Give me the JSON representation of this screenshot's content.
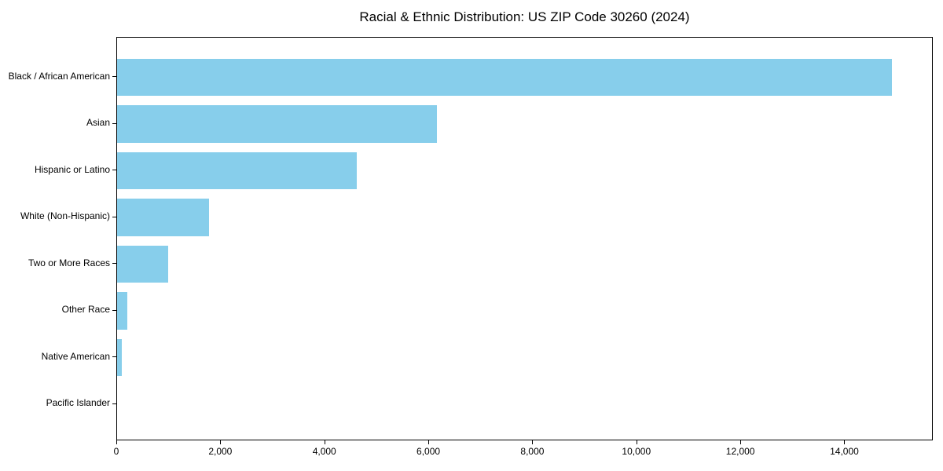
{
  "chart_data": {
    "type": "bar",
    "orientation": "horizontal",
    "title": "Racial & Ethnic Distribution: US ZIP Code 30260 (2024)",
    "categories": [
      "Black / African American",
      "Asian",
      "Hispanic or Latino",
      "White (Non-Hispanic)",
      "Two or More Races",
      "Other Race",
      "Native American",
      "Pacific Islander"
    ],
    "values": [
      14900,
      6155,
      4605,
      1765,
      985,
      190,
      90,
      0
    ],
    "xlabel": "",
    "ylabel": "",
    "xlim": [
      0,
      15670
    ],
    "xticks": [
      0,
      2000,
      4000,
      6000,
      8000,
      10000,
      12000,
      14000
    ],
    "xtick_labels": [
      "0",
      "2,000",
      "4,000",
      "6,000",
      "8,000",
      "10,000",
      "12,000",
      "14,000"
    ],
    "bar_color": "#87CEEB",
    "axis_color": "#000000",
    "text_color": "#000000",
    "background": "#FFFFFF",
    "grid": false,
    "legend": "none"
  }
}
